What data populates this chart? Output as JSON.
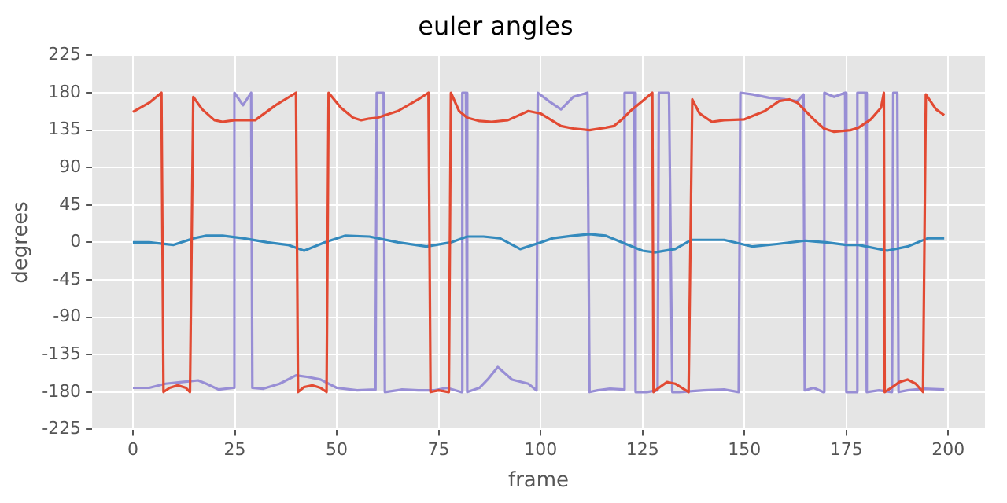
{
  "chart_data": {
    "type": "line",
    "title": "euler angles",
    "xlabel": "frame",
    "ylabel": "degrees",
    "xlim": [
      -10,
      209
    ],
    "ylim": [
      -225,
      225
    ],
    "xticks": [
      0,
      25,
      50,
      75,
      100,
      125,
      150,
      175,
      200
    ],
    "yticks": [
      -225,
      -180,
      -135,
      -90,
      -45,
      0,
      45,
      90,
      135,
      180,
      225
    ],
    "grid": true,
    "legend": false,
    "marker": "none",
    "line_style": "solid",
    "series": [
      {
        "color": "#e24a33",
        "x": [
          0,
          4,
          7,
          7.5,
          9,
          11,
          13,
          14,
          14.8,
          17,
          20,
          22,
          25,
          27,
          30,
          35,
          40,
          40.5,
          42,
          44,
          46,
          47.5,
          48,
          51,
          54,
          56,
          58,
          60,
          65,
          70,
          72.5,
          73,
          75,
          77.5,
          78,
          80,
          82,
          85,
          88,
          92,
          97,
          100,
          105,
          108,
          112,
          116,
          118,
          120,
          122,
          125,
          127.4,
          127.7,
          129,
          131,
          133,
          136.3,
          137.2,
          139,
          142,
          145,
          150,
          155,
          158.5,
          161,
          163,
          165,
          167,
          169.5,
          172,
          176,
          178,
          181,
          183.5,
          184.2,
          184.4,
          186,
          188,
          190,
          192,
          193.8,
          194.5,
          197,
          199
        ],
        "values": [
          157,
          168,
          180,
          -180,
          -175,
          -172,
          -175,
          -180,
          175,
          160,
          147,
          145,
          147,
          147,
          147,
          165,
          180,
          -180,
          -174,
          -172,
          -175,
          -180,
          180,
          162,
          150,
          147,
          149,
          150,
          158,
          172,
          180,
          -180,
          -178,
          -180,
          180,
          158,
          150,
          146,
          145,
          147,
          158,
          155,
          140,
          137,
          135,
          138,
          140,
          148,
          158,
          170,
          180,
          -180,
          -175,
          -168,
          -170,
          -180,
          172,
          155,
          145,
          147,
          148,
          158,
          170,
          172,
          168,
          158,
          148,
          137,
          133,
          135,
          138,
          148,
          162,
          180,
          -180,
          -175,
          -168,
          -165,
          -170,
          -180,
          178,
          160,
          153
        ]
      },
      {
        "color": "#348abd",
        "x": [
          0,
          4,
          10,
          15,
          18,
          22,
          27,
          33,
          38,
          42,
          47,
          52,
          58,
          65,
          72,
          78,
          82,
          86,
          90,
          95,
          100,
          103,
          108,
          112,
          116,
          120,
          125,
          128,
          133,
          137,
          145,
          152,
          158,
          165,
          170,
          175,
          178,
          185,
          190,
          195,
          199
        ],
        "values": [
          0,
          0,
          -3,
          5,
          8,
          8,
          5,
          0,
          -3,
          -10,
          0,
          8,
          7,
          0,
          -5,
          0,
          7,
          7,
          5,
          -8,
          0,
          5,
          8,
          10,
          8,
          0,
          -10,
          -12,
          -8,
          3,
          3,
          -5,
          -2,
          2,
          0,
          -3,
          -3,
          -10,
          -5,
          5,
          5
        ]
      },
      {
        "color": "#988ed5",
        "x": [
          0,
          4,
          8,
          12,
          16,
          18,
          21,
          24.6,
          24.9,
          27,
          29,
          29.3,
          32,
          36,
          40,
          43,
          46,
          50,
          55,
          59.5,
          59.8,
          61.5,
          61.8,
          66,
          70,
          74,
          77,
          80.5,
          80.8,
          81.7,
          82,
          85,
          87,
          89.5,
          93,
          97,
          99,
          99.3,
          102,
          105,
          108,
          111.5,
          112,
          114,
          117,
          120.3,
          120.6,
          123,
          123.3,
          126,
          128.7,
          129,
          131.5,
          132.3,
          134,
          140,
          145,
          148.6,
          149,
          152,
          156,
          160,
          163,
          164.5,
          164.8,
          167,
          169.3,
          169.6,
          172,
          174.7,
          175,
          177.4,
          177.7,
          179.7,
          180,
          183,
          186.2,
          186.5,
          187.5,
          187.8,
          190,
          194,
          199
        ],
        "values": [
          -175,
          -175,
          -170,
          -168,
          -166,
          -170,
          -177,
          -175,
          180,
          165,
          180,
          -175,
          -176,
          -170,
          -160,
          -162,
          -165,
          -175,
          -178,
          -177,
          180,
          180,
          -180,
          -177,
          -178,
          -178,
          -175,
          -180,
          180,
          180,
          -180,
          -175,
          -165,
          -150,
          -165,
          -170,
          -178,
          180,
          170,
          160,
          175,
          180,
          -180,
          -178,
          -176,
          -177,
          180,
          180,
          -180,
          -180,
          -178,
          180,
          180,
          -180,
          -180,
          -178,
          -177,
          -180,
          180,
          178,
          174,
          172,
          170,
          178,
          -178,
          -175,
          -180,
          180,
          175,
          180,
          -180,
          -180,
          180,
          180,
          -180,
          -178,
          -180,
          180,
          180,
          -180,
          -178,
          -176,
          -177
        ]
      }
    ]
  }
}
